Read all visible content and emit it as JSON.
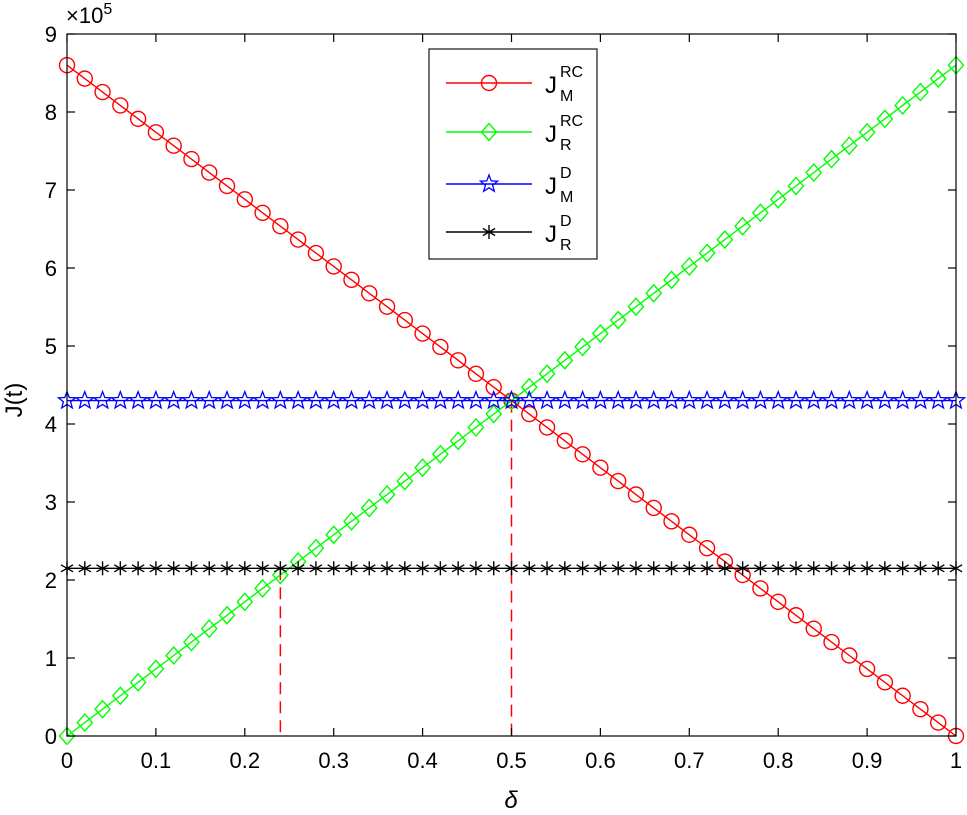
{
  "chart_data": {
    "type": "line",
    "title": "",
    "xlabel": "δ",
    "ylabel": "J(t)",
    "y_exponent_label": "×10",
    "y_exponent_power": "5",
    "xlim": [
      0,
      1
    ],
    "ylim": [
      0,
      9
    ],
    "x_ticks": [
      "0",
      "0.1",
      "0.2",
      "0.3",
      "0.4",
      "0.5",
      "0.6",
      "0.7",
      "0.8",
      "0.9",
      "1"
    ],
    "y_ticks": [
      "0",
      "1",
      "2",
      "3",
      "4",
      "5",
      "6",
      "7",
      "8",
      "9"
    ],
    "grid": false,
    "legend_position": "top-center",
    "series": [
      {
        "base": "J",
        "sup": "RC",
        "sub": "M",
        "color": "#ff0000",
        "marker": "circle",
        "x_start": 0,
        "x_end": 1,
        "x_step": 0.02,
        "y_start": 8.6,
        "y_end": 0
      },
      {
        "base": "J",
        "sup": "RC",
        "sub": "R",
        "color": "#00ff00",
        "marker": "diamond",
        "x_start": 0,
        "x_end": 1,
        "x_step": 0.02,
        "y_start": 0,
        "y_end": 8.6
      },
      {
        "base": "J",
        "sup": "D",
        "sub": "M",
        "color": "#0000ff",
        "marker": "star",
        "x_start": 0,
        "x_end": 1,
        "x_step": 0.02,
        "y_start": 4.3,
        "y_end": 4.3
      },
      {
        "base": "J",
        "sup": "D",
        "sub": "R",
        "color": "#000000",
        "marker": "asterisk",
        "x_start": 0,
        "x_end": 1,
        "x_step": 0.02,
        "y_start": 2.15,
        "y_end": 2.15
      }
    ],
    "reference_lines": [
      {
        "x": 0.24,
        "y": 2.15,
        "color": "#ff0000"
      },
      {
        "x": 0.5,
        "y": 4.3,
        "color": "#ff0000"
      }
    ]
  }
}
